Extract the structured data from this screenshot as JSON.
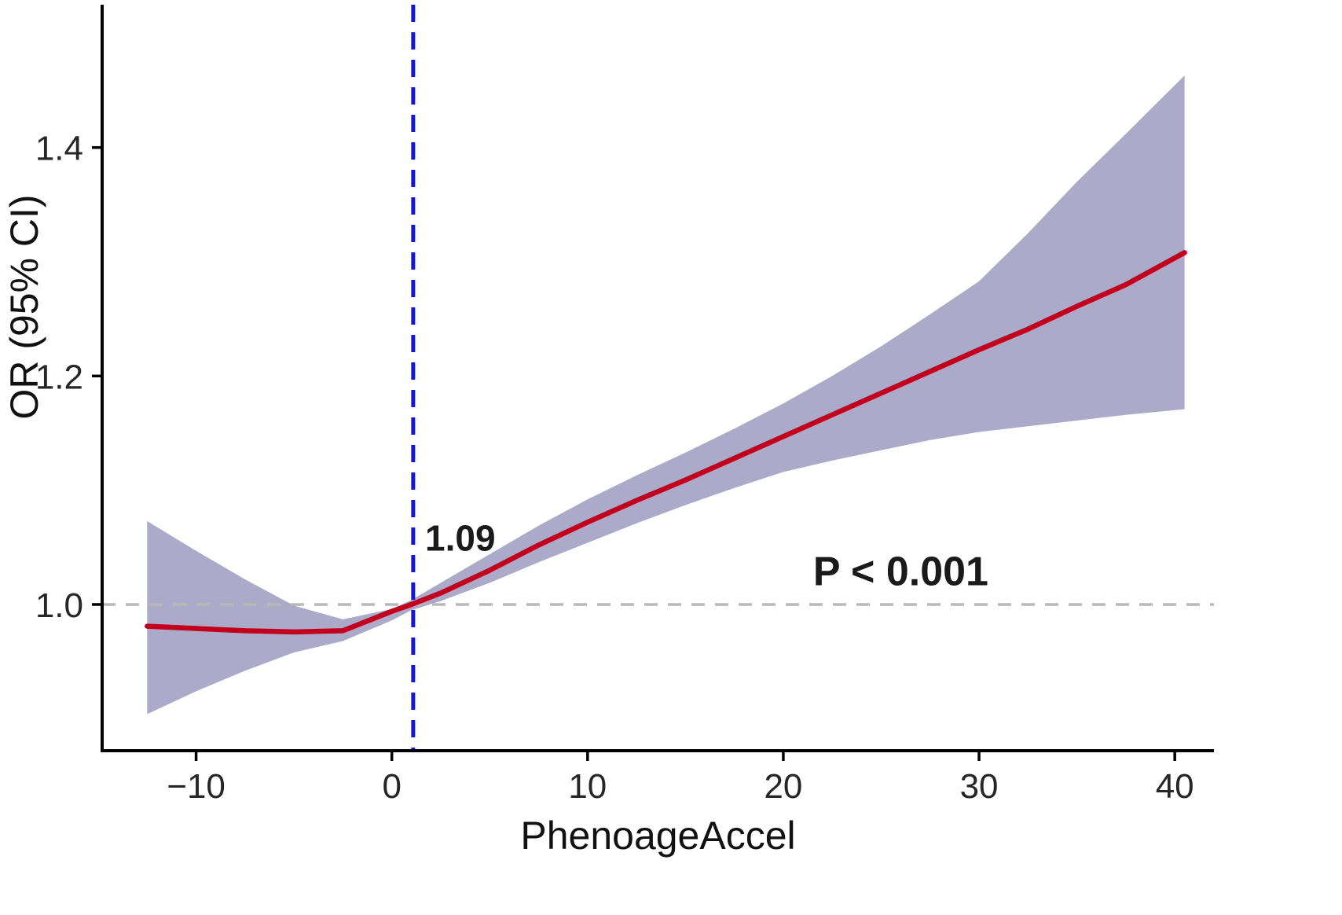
{
  "chart_data": {
    "type": "line",
    "title": "",
    "xlabel": "PhenoageAccel",
    "ylabel": "OR (95% CI)",
    "xlim": [
      -14.8,
      42.0
    ],
    "ylim": [
      0.872,
      1.525
    ],
    "grid": false,
    "legend": "none",
    "x_ticks": [
      {
        "value": -10,
        "label": "−10"
      },
      {
        "value": 0,
        "label": "0"
      },
      {
        "value": 10,
        "label": "10"
      },
      {
        "value": 20,
        "label": "20"
      },
      {
        "value": 30,
        "label": "30"
      },
      {
        "value": 40,
        "label": "40"
      }
    ],
    "y_ticks": [
      {
        "value": 1.0,
        "label": "1.0"
      },
      {
        "value": 1.2,
        "label": "1.2"
      },
      {
        "value": 1.4,
        "label": "1.4"
      }
    ],
    "x": [
      -12.5,
      -10,
      -7.5,
      -5,
      -2.5,
      0,
      1,
      2.5,
      5,
      7.5,
      10,
      12.5,
      15,
      17.5,
      20,
      22.5,
      25,
      27.5,
      30,
      32.5,
      35,
      37.5,
      40.5
    ],
    "series": [
      {
        "name": "OR",
        "values": [
          0.981,
          0.979,
          0.977,
          0.976,
          0.977,
          0.994,
          1.0,
          1.01,
          1.03,
          1.052,
          1.072,
          1.091,
          1.109,
          1.128,
          1.147,
          1.166,
          1.185,
          1.204,
          1.223,
          1.241,
          1.261,
          1.28,
          1.308
        ]
      },
      {
        "name": "95% CI lower",
        "values": [
          0.904,
          0.924,
          0.942,
          0.958,
          0.968,
          0.986,
          0.995,
          1.003,
          1.019,
          1.037,
          1.054,
          1.071,
          1.087,
          1.102,
          1.116,
          1.126,
          1.135,
          1.144,
          1.151,
          1.156,
          1.161,
          1.166,
          1.171
        ]
      },
      {
        "name": "95% CI upper",
        "values": [
          1.073,
          1.047,
          1.022,
          0.999,
          0.987,
          0.996,
          1.004,
          1.019,
          1.044,
          1.069,
          1.092,
          1.113,
          1.133,
          1.154,
          1.176,
          1.2,
          1.226,
          1.254,
          1.283,
          1.325,
          1.37,
          1.412,
          1.463
        ]
      }
    ],
    "reference_line": {
      "y": 1.0,
      "style": "dashed",
      "color": "#b8b8b8"
    },
    "cutoff_line": {
      "x": 1.09,
      "style": "dashed",
      "color": "#1414dd"
    },
    "annotations": [
      {
        "id": "cutoff-value",
        "text": "1.09",
        "x": 1.7,
        "y": 1.047,
        "color": "#1414dd",
        "anchor": "start",
        "size": 46,
        "weight": 600
      },
      {
        "id": "p-value",
        "text": "P < 0.001",
        "x": 26.0,
        "y": 1.017,
        "color": "#000000",
        "anchor": "middle",
        "size": 52,
        "weight": 600
      }
    ],
    "colors": {
      "curve": "#c2001e",
      "band": "#abaac8",
      "axis": "#000000",
      "reference": "#b8b8b8",
      "cutoff": "#1414dd"
    }
  }
}
